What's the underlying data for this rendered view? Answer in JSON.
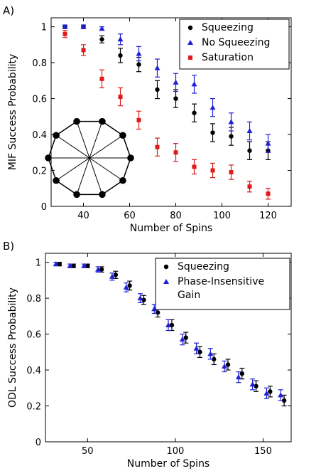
{
  "colors": {
    "black": "#000000",
    "blue": "#1f1fd6",
    "red": "#e01a1a"
  },
  "chart_data": [
    {
      "panel_label": "A)",
      "type": "scatter",
      "xlabel": "Number of Spins",
      "ylabel": "MIF Success Probability",
      "xlim": [
        26,
        130
      ],
      "ylim": [
        0,
        1.05
      ],
      "xticks": [
        40,
        60,
        80,
        100,
        120
      ],
      "yticks": [
        0,
        0.2,
        0.4,
        0.6,
        0.8,
        1
      ],
      "grid": false,
      "legend_position": "top-right",
      "inset_graph": "ring of 10 nodes with opposite nodes connected",
      "series": [
        {
          "name": "Squeezing",
          "marker": "circle",
          "color": "#000000",
          "x": [
            32,
            40,
            48,
            56,
            64,
            72,
            80,
            88,
            96,
            104,
            112,
            120
          ],
          "y": [
            1.0,
            1.0,
            0.93,
            0.84,
            0.79,
            0.65,
            0.6,
            0.52,
            0.41,
            0.39,
            0.31,
            0.31
          ],
          "err": [
            0.01,
            0.01,
            0.02,
            0.04,
            0.04,
            0.05,
            0.05,
            0.05,
            0.05,
            0.05,
            0.05,
            0.05
          ]
        },
        {
          "name": "No Squeezing",
          "marker": "triangle",
          "color": "#1f1fd6",
          "x": [
            32,
            40,
            48,
            56,
            64,
            72,
            80,
            88,
            96,
            104,
            112,
            120
          ],
          "y": [
            1.0,
            1.0,
            0.99,
            0.93,
            0.85,
            0.77,
            0.69,
            0.68,
            0.55,
            0.47,
            0.42,
            0.35
          ],
          "err": [
            0.01,
            0.01,
            0.01,
            0.03,
            0.04,
            0.05,
            0.05,
            0.05,
            0.05,
            0.05,
            0.05,
            0.05
          ]
        },
        {
          "name": "Saturation",
          "marker": "square",
          "color": "#e01a1a",
          "x": [
            32,
            40,
            48,
            56,
            64,
            72,
            80,
            88,
            96,
            104,
            112,
            120
          ],
          "y": [
            0.96,
            0.87,
            0.71,
            0.61,
            0.48,
            0.33,
            0.3,
            0.22,
            0.2,
            0.19,
            0.11,
            0.07
          ],
          "err": [
            0.02,
            0.03,
            0.05,
            0.05,
            0.05,
            0.05,
            0.05,
            0.04,
            0.04,
            0.04,
            0.03,
            0.03
          ]
        }
      ]
    },
    {
      "panel_label": "B)",
      "type": "scatter",
      "xlabel": "Number of Spins",
      "ylabel": "ODL Success Probability",
      "xlim": [
        26,
        166
      ],
      "ylim": [
        0,
        1.05
      ],
      "xticks": [
        50,
        100,
        150
      ],
      "yticks": [
        0,
        0.2,
        0.4,
        0.6,
        0.8,
        1
      ],
      "grid": false,
      "legend_position": "top-right",
      "series": [
        {
          "name": "Squeezing",
          "marker": "circle",
          "color": "#000000",
          "x": [
            34,
            42,
            50,
            58,
            66,
            74,
            82,
            90,
            98,
            106,
            114,
            122,
            130,
            138,
            146,
            154,
            162
          ],
          "y": [
            0.99,
            0.98,
            0.98,
            0.96,
            0.93,
            0.87,
            0.79,
            0.72,
            0.65,
            0.58,
            0.5,
            0.46,
            0.43,
            0.38,
            0.31,
            0.28,
            0.23
          ],
          "err": [
            0.01,
            0.01,
            0.01,
            0.015,
            0.02,
            0.025,
            0.025,
            0.025,
            0.03,
            0.03,
            0.03,
            0.03,
            0.03,
            0.03,
            0.03,
            0.03,
            0.03
          ]
        },
        {
          "name": "Phase-Insensitive\nGain",
          "marker": "triangle",
          "color": "#1f1fd6",
          "x": [
            32,
            40,
            48,
            56,
            64,
            72,
            80,
            88,
            96,
            104,
            112,
            120,
            128,
            136,
            144,
            152,
            160
          ],
          "y": [
            0.99,
            0.98,
            0.98,
            0.96,
            0.92,
            0.86,
            0.8,
            0.74,
            0.65,
            0.57,
            0.52,
            0.49,
            0.42,
            0.36,
            0.32,
            0.27,
            0.26
          ],
          "err": [
            0.01,
            0.01,
            0.01,
            0.015,
            0.02,
            0.025,
            0.025,
            0.025,
            0.03,
            0.03,
            0.03,
            0.03,
            0.03,
            0.03,
            0.03,
            0.03,
            0.03
          ]
        }
      ]
    }
  ]
}
